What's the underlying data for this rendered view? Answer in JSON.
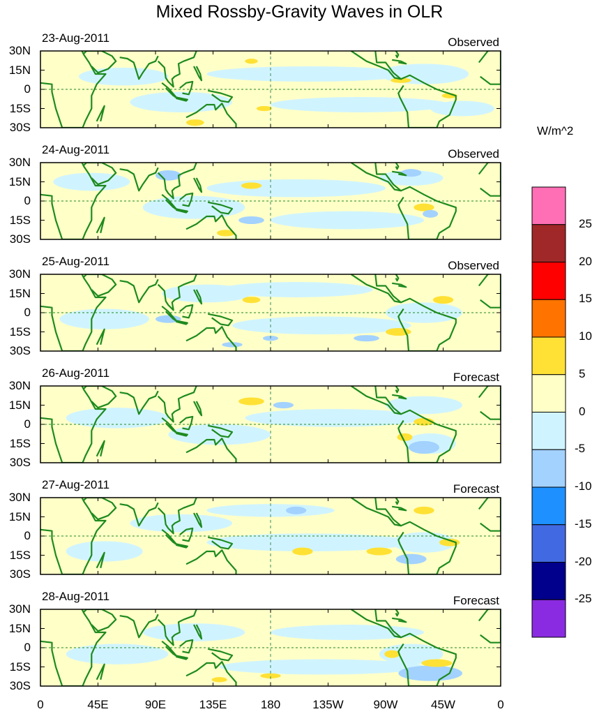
{
  "chart_data": {
    "type": "heatmap",
    "title": "Mixed Rossby-Gravity Waves in OLR",
    "units": "W/m^2",
    "y_ticks": [
      "30N",
      "15N",
      "0",
      "15S",
      "30S"
    ],
    "ylim": [
      -30,
      30
    ],
    "x_ticks": [
      "0",
      "45E",
      "90E",
      "135E",
      "180",
      "135W",
      "90W",
      "45W",
      "0"
    ],
    "xlim": [
      0,
      360
    ],
    "panels": [
      {
        "date": "23-Aug-2011",
        "status": "Observed"
      },
      {
        "date": "24-Aug-2011",
        "status": "Observed"
      },
      {
        "date": "25-Aug-2011",
        "status": "Observed"
      },
      {
        "date": "26-Aug-2011",
        "status": "Forecast"
      },
      {
        "date": "27-Aug-2011",
        "status": "Forecast"
      },
      {
        "date": "28-Aug-2011",
        "status": "Forecast"
      }
    ],
    "colorbar": {
      "levels": [
        "25",
        "20",
        "15",
        "10",
        "5",
        "0",
        "-5",
        "-10",
        "-15",
        "-20",
        "-25"
      ],
      "colors": [
        "#ff6fb5",
        "#a02828",
        "#ff0000",
        "#ff7300",
        "#ffe135",
        "#ffffc8",
        "#d0f4ff",
        "#a3d2ff",
        "#1e90ff",
        "#4169e1",
        "#00008c",
        "#8a2be2"
      ]
    }
  },
  "style": {
    "land_color": "#1e8a1e",
    "background_fill": "#ffffc8",
    "negative_fill": "#d0f4ff"
  }
}
